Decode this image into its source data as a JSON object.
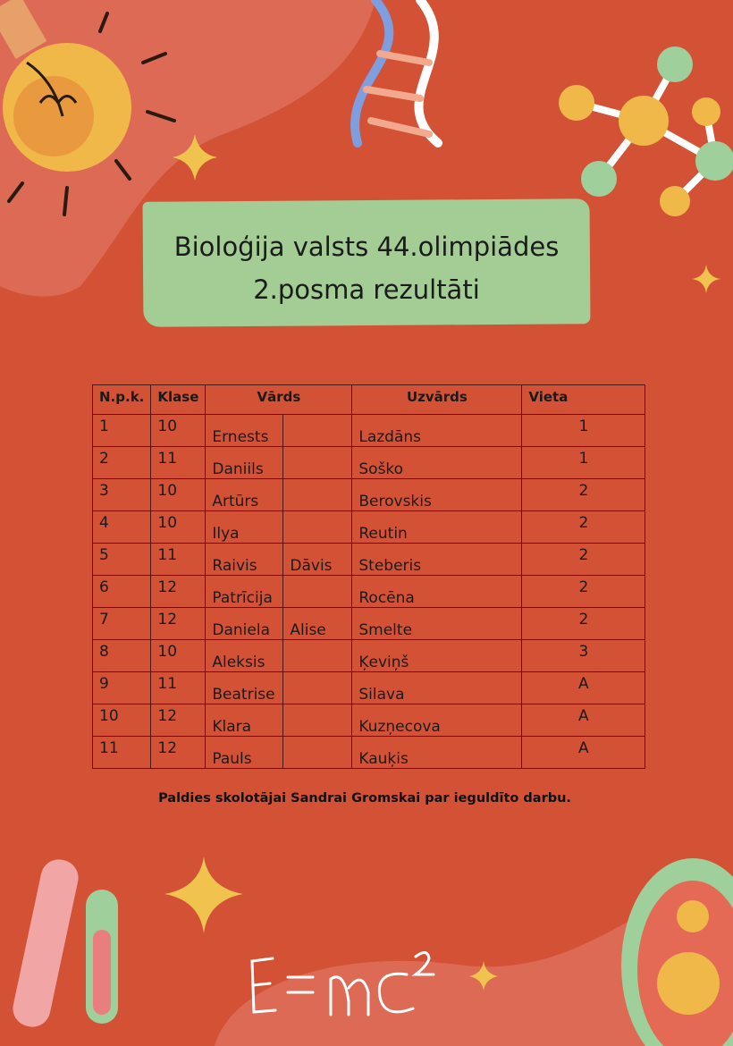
{
  "colors": {
    "background": "#D35236",
    "title_box": "#A3CD94"
  },
  "title": {
    "line1": "Bioloģija valsts 44.olimpiādes",
    "line2": "2.posma rezultāti"
  },
  "table": {
    "headers": [
      "N.p.k.",
      "Klase",
      "Vārds",
      "Uzvārds",
      "Vieta"
    ],
    "rows": [
      [
        "1",
        "10",
        "Ernests",
        "",
        "Lazdāns",
        "1"
      ],
      [
        "2",
        "11",
        "Daniils",
        "",
        "Soško",
        "1"
      ],
      [
        "3",
        "10",
        "Artūrs",
        "",
        "Berovskis",
        "2"
      ],
      [
        "4",
        "10",
        "Ilya",
        "",
        "Reutin",
        "2"
      ],
      [
        "5",
        "11",
        "Raivis",
        "Dāvis",
        "Steberis",
        "2"
      ],
      [
        "6",
        "12",
        "Patrīcija",
        "",
        "Rocēna",
        "2"
      ],
      [
        "7",
        "12",
        "Daniela",
        "Alise",
        "Smelte",
        "2"
      ],
      [
        "8",
        "10",
        "Aleksis",
        "",
        "Ķeviņš",
        "3"
      ],
      [
        "9",
        "11",
        "Beatrise",
        "",
        "Silava",
        "A"
      ],
      [
        "10",
        "12",
        "Klara",
        "",
        "Kuzņecova",
        "A"
      ],
      [
        "11",
        "12",
        "Pauls",
        "",
        "Kauķis",
        "A"
      ]
    ]
  },
  "footer": {
    "thanks": "Paldies skolotājai Sandrai Gromskai par ieguldīto darbu."
  },
  "decorations": [
    "light-bulb-icon",
    "dna-icon",
    "molecule-icon",
    "sparkle-icon",
    "test-tubes-icon",
    "formula-emc2",
    "cell-icon"
  ]
}
